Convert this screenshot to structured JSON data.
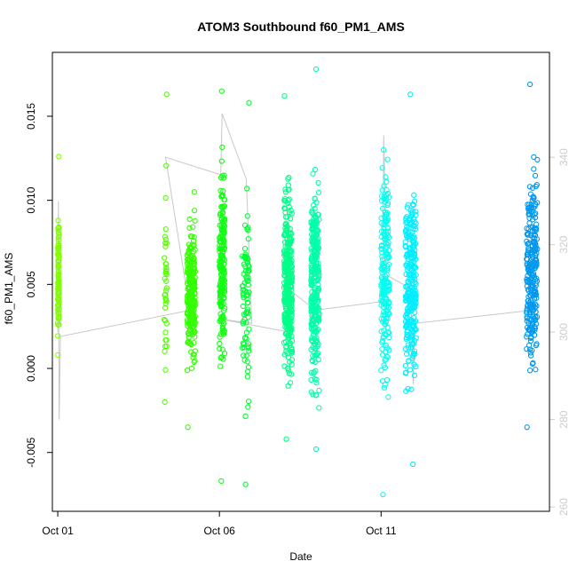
{
  "chart_data": {
    "type": "scatter",
    "title": "ATOM3 Southbound f60_PM1_AMS",
    "xlabel": "Date",
    "ylabel": "f60_PM1_AMS",
    "x_axis": {
      "type": "date",
      "range": [
        "2015-09-30T20:00",
        "2015-10-16T05:00"
      ],
      "ticks": [
        {
          "value": "2015-10-01",
          "label": "Oct 01"
        },
        {
          "value": "2015-10-06",
          "label": "Oct 06"
        },
        {
          "value": "2015-10-11",
          "label": "Oct 11"
        }
      ]
    },
    "y_axis": {
      "range": [
        -0.0085,
        0.0188
      ],
      "ticks": [
        {
          "value": -0.005,
          "label": "-0.005"
        },
        {
          "value": 0.0,
          "label": "0.000"
        },
        {
          "value": 0.005,
          "label": "0.005"
        },
        {
          "value": 0.01,
          "label": "0.010"
        },
        {
          "value": 0.015,
          "label": "0.015"
        }
      ]
    },
    "y2_axis": {
      "range": [
        259,
        364
      ],
      "color": "#cccccc",
      "ticks": [
        {
          "value": 260,
          "label": "260"
        },
        {
          "value": 280,
          "label": "280"
        },
        {
          "value": 300,
          "label": "300"
        },
        {
          "value": 320,
          "label": "320"
        },
        {
          "value": 340,
          "label": "340"
        }
      ]
    },
    "grid": false,
    "legend": "none",
    "color_encoding": "point color follows time, from yellow-green through green to cyan and blue",
    "clusters": [
      {
        "start": "2015-10-01T00:00",
        "end": "2015-10-01T01:00",
        "y_min": 0.0008,
        "y_max": 0.0126,
        "center": 0.0055,
        "n": 110,
        "color": "#80ff00"
      },
      {
        "start": "2015-10-04T07:00",
        "end": "2015-10-04T09:00",
        "y_min": -0.002,
        "y_max": 0.0163,
        "center": 0.005,
        "n": 40,
        "color": "#55ff00"
      },
      {
        "start": "2015-10-05T00:00",
        "end": "2015-10-05T06:00",
        "y_min": -0.0035,
        "y_max": 0.0105,
        "center": 0.0045,
        "n": 260,
        "color": "#33ff00"
      },
      {
        "start": "2015-10-06T00:00",
        "end": "2015-10-06T04:00",
        "y_min": -0.0067,
        "y_max": 0.0165,
        "center": 0.006,
        "n": 200,
        "color": "#11ff11"
      },
      {
        "start": "2015-10-06T17:00",
        "end": "2015-10-06T22:00",
        "y_min": -0.0069,
        "y_max": 0.0158,
        "center": 0.004,
        "n": 90,
        "color": "#00ff33"
      },
      {
        "start": "2015-10-08T00:00",
        "end": "2015-10-08T06:00",
        "y_min": -0.0042,
        "y_max": 0.0162,
        "center": 0.005,
        "n": 340,
        "color": "#00ff88"
      },
      {
        "start": "2015-10-08T20:00",
        "end": "2015-10-09T02:00",
        "y_min": -0.0048,
        "y_max": 0.0178,
        "center": 0.005,
        "n": 300,
        "color": "#00ffaa"
      },
      {
        "start": "2015-10-11T00:00",
        "end": "2015-10-11T06:00",
        "y_min": -0.0075,
        "y_max": 0.013,
        "center": 0.0055,
        "n": 200,
        "color": "#00ffee"
      },
      {
        "start": "2015-10-11T18:00",
        "end": "2015-10-12T02:00",
        "y_min": -0.0057,
        "y_max": 0.0163,
        "center": 0.005,
        "n": 270,
        "color": "#00eeff"
      },
      {
        "start": "2015-10-15T12:00",
        "end": "2015-10-15T20:00",
        "y_min": -0.0035,
        "y_max": 0.0169,
        "center": 0.0055,
        "n": 260,
        "color": "#0099ee"
      }
    ],
    "secondary_series": {
      "axis": "y2",
      "color": "#c8c8c8",
      "style": "thin line connecting consecutive points",
      "points": [
        {
          "t": "2015-10-01T00:00",
          "y": 300
        },
        {
          "t": "2015-10-01T00:30",
          "y": 330
        },
        {
          "t": "2015-10-01T01:00",
          "y": 280
        },
        {
          "t": "2015-10-01T02:00",
          "y": 299
        },
        {
          "t": "2015-10-05T02:00",
          "y": 305
        },
        {
          "t": "2015-10-04T08:00",
          "y": 340
        },
        {
          "t": "2015-10-06T01:00",
          "y": 336
        },
        {
          "t": "2015-10-06T02:00",
          "y": 350
        },
        {
          "t": "2015-10-06T20:00",
          "y": 335
        },
        {
          "t": "2015-10-07T00:00",
          "y": 302
        },
        {
          "t": "2015-10-06T00:00",
          "y": 303
        },
        {
          "t": "2015-10-08T04:00",
          "y": 300
        },
        {
          "t": "2015-10-08T03:00",
          "y": 310
        },
        {
          "t": "2015-10-08T23:00",
          "y": 305
        },
        {
          "t": "2015-10-11T01:00",
          "y": 307
        },
        {
          "t": "2015-10-11T02:00",
          "y": 345
        },
        {
          "t": "2015-10-11T04:00",
          "y": 313
        },
        {
          "t": "2015-10-11T22:00",
          "y": 310
        },
        {
          "t": "2015-10-12T00:00",
          "y": 288
        },
        {
          "t": "2015-10-12T01:00",
          "y": 302
        },
        {
          "t": "2015-10-15T16:00",
          "y": 305
        }
      ]
    }
  }
}
